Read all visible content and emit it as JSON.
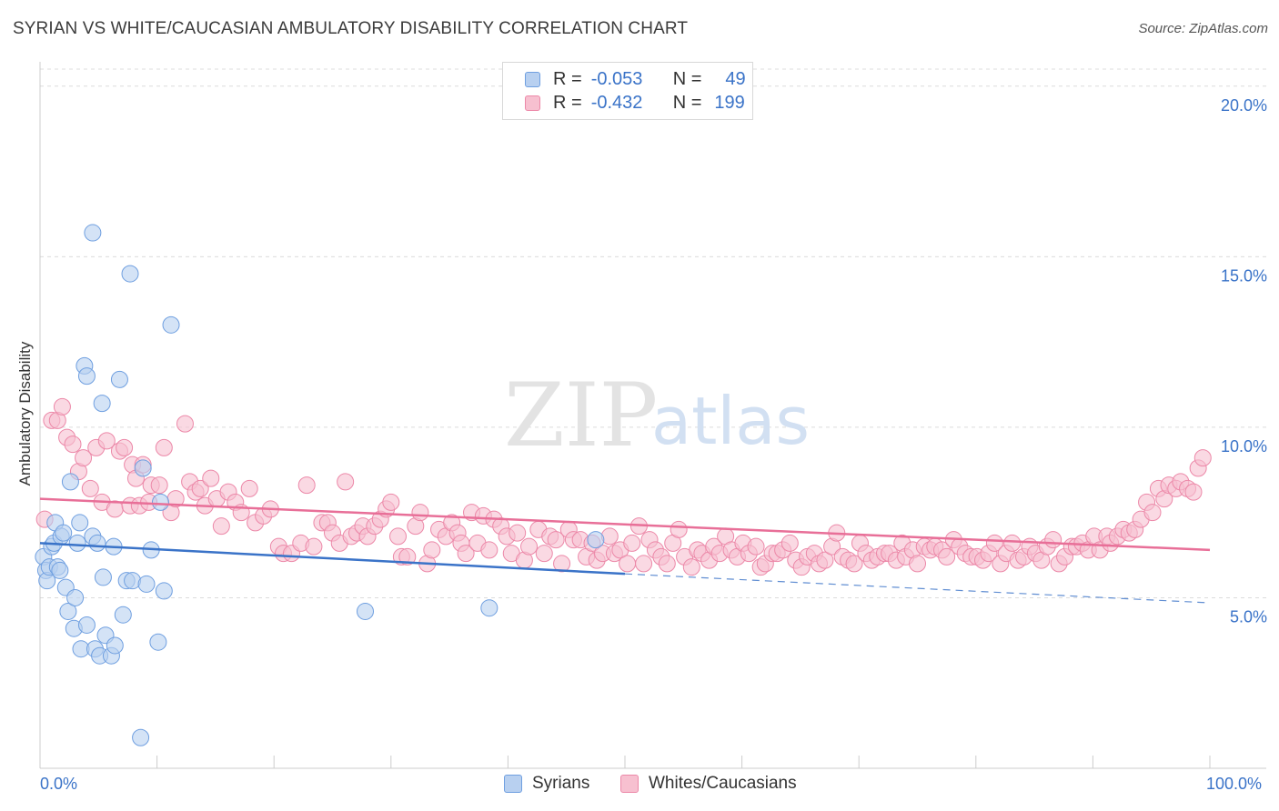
{
  "title": "SYRIAN VS WHITE/CAUCASIAN AMBULATORY DISABILITY CORRELATION CHART",
  "source": "Source: ZipAtlas.com",
  "watermark": {
    "zip": "ZIP",
    "atlas": "atlas"
  },
  "colors": {
    "syrian_fill": "#b8d0f0",
    "syrian_stroke": "#6f9fe0",
    "syrian_line": "#3a73c8",
    "white_fill": "#f7c0d0",
    "white_stroke": "#ec88a8",
    "white_line": "#e86f98",
    "tick_text": "#3a73c8"
  },
  "legend": {
    "rows": [
      {
        "r_label": "R =",
        "r_value": "-0.053",
        "n_label": "N =",
        "n_value": "49"
      },
      {
        "r_label": "R =",
        "r_value": "-0.432",
        "n_label": "N =",
        "n_value": "199"
      }
    ]
  },
  "bottom_legend": {
    "syrians": "Syrians",
    "whites": "Whites/Caucasians"
  },
  "chart_data": {
    "type": "scatter",
    "title": "SYRIAN VS WHITE/CAUCASIAN AMBULATORY DISABILITY CORRELATION CHART",
    "xlabel": "",
    "ylabel": "Ambulatory Disability",
    "xlim": [
      0,
      100
    ],
    "ylim": [
      0,
      20.5
    ],
    "x_tick_labels": {
      "min": "0.0%",
      "max": "100.0%"
    },
    "y_ticks": [
      {
        "value": 5,
        "label": "5.0%"
      },
      {
        "value": 10,
        "label": "10.0%"
      },
      {
        "value": 15,
        "label": "15.0%"
      },
      {
        "value": 20,
        "label": "20.0%"
      }
    ],
    "series": [
      {
        "name": "Syrians",
        "r": -0.053,
        "n": 49,
        "trend": {
          "x0": 0,
          "y0": 6.6,
          "x1": 50,
          "y1": 5.7,
          "dashed_to_x": 100,
          "dashed_to_y": 4.85
        },
        "points": [
          [
            0.3,
            6.2
          ],
          [
            0.5,
            5.8
          ],
          [
            0.6,
            5.5
          ],
          [
            0.8,
            5.9
          ],
          [
            1,
            6.5
          ],
          [
            1.2,
            6.6
          ],
          [
            1.3,
            7.2
          ],
          [
            1.5,
            5.9
          ],
          [
            1.7,
            5.8
          ],
          [
            1.8,
            6.8
          ],
          [
            2,
            6.9
          ],
          [
            2.2,
            5.3
          ],
          [
            2.4,
            4.6
          ],
          [
            2.6,
            8.4
          ],
          [
            2.9,
            4.1
          ],
          [
            3,
            5.0
          ],
          [
            3.2,
            6.6
          ],
          [
            3.4,
            7.2
          ],
          [
            3.5,
            3.5
          ],
          [
            3.8,
            11.8
          ],
          [
            4,
            11.5
          ],
          [
            4,
            4.2
          ],
          [
            4.5,
            15.7
          ],
          [
            4.5,
            6.8
          ],
          [
            4.7,
            3.5
          ],
          [
            4.9,
            6.6
          ],
          [
            5.1,
            3.3
          ],
          [
            5.3,
            10.7
          ],
          [
            5.4,
            5.6
          ],
          [
            5.6,
            3.9
          ],
          [
            6.1,
            3.3
          ],
          [
            6.3,
            6.5
          ],
          [
            6.4,
            3.6
          ],
          [
            6.8,
            11.4
          ],
          [
            7.1,
            4.5
          ],
          [
            7.4,
            5.5
          ],
          [
            7.7,
            14.5
          ],
          [
            7.9,
            5.5
          ],
          [
            8.6,
            0.9
          ],
          [
            8.8,
            8.8
          ],
          [
            9.1,
            5.4
          ],
          [
            9.5,
            6.4
          ],
          [
            10.1,
            3.7
          ],
          [
            10.3,
            7.8
          ],
          [
            10.6,
            5.2
          ],
          [
            11.2,
            13.0
          ],
          [
            27.8,
            4.6
          ],
          [
            38.4,
            4.7
          ],
          [
            47.5,
            6.7
          ]
        ]
      },
      {
        "name": "Whites/Caucasians",
        "r": -0.432,
        "n": 199,
        "trend": {
          "x0": 0,
          "y0": 7.9,
          "x1": 100,
          "y1": 6.4
        },
        "points": [
          [
            0.4,
            7.3
          ],
          [
            1,
            10.2
          ],
          [
            1.5,
            10.2
          ],
          [
            1.9,
            10.6
          ],
          [
            2.3,
            9.7
          ],
          [
            2.8,
            9.5
          ],
          [
            3.3,
            8.7
          ],
          [
            3.7,
            9.1
          ],
          [
            4.3,
            8.2
          ],
          [
            4.8,
            9.4
          ],
          [
            5.3,
            7.8
          ],
          [
            5.7,
            9.6
          ],
          [
            6.4,
            7.6
          ],
          [
            6.8,
            9.3
          ],
          [
            7.2,
            9.4
          ],
          [
            7.7,
            7.7
          ],
          [
            7.9,
            8.9
          ],
          [
            8.2,
            8.5
          ],
          [
            8.5,
            7.7
          ],
          [
            8.8,
            8.9
          ],
          [
            9.3,
            7.8
          ],
          [
            9.5,
            8.3
          ],
          [
            10.2,
            8.3
          ],
          [
            10.6,
            9.4
          ],
          [
            11.2,
            7.5
          ],
          [
            11.6,
            7.9
          ],
          [
            12.4,
            10.1
          ],
          [
            12.8,
            8.4
          ],
          [
            13.3,
            8.1
          ],
          [
            13.7,
            8.2
          ],
          [
            14.1,
            7.7
          ],
          [
            14.6,
            8.5
          ],
          [
            15.1,
            7.9
          ],
          [
            15.5,
            7.1
          ],
          [
            16.1,
            8.1
          ],
          [
            16.7,
            7.8
          ],
          [
            17.2,
            7.5
          ],
          [
            17.9,
            8.2
          ],
          [
            18.4,
            7.2
          ],
          [
            19.1,
            7.4
          ],
          [
            19.7,
            7.6
          ],
          [
            20.4,
            6.5
          ],
          [
            20.8,
            6.3
          ],
          [
            21.5,
            6.3
          ],
          [
            22.3,
            6.6
          ],
          [
            22.8,
            8.3
          ],
          [
            23.4,
            6.5
          ],
          [
            24.1,
            7.2
          ],
          [
            24.6,
            7.2
          ],
          [
            25,
            6.9
          ],
          [
            25.6,
            6.6
          ],
          [
            26.1,
            8.4
          ],
          [
            26.6,
            6.8
          ],
          [
            27.1,
            6.9
          ],
          [
            27.6,
            7.1
          ],
          [
            28,
            6.8
          ],
          [
            28.6,
            7.1
          ],
          [
            29.1,
            7.3
          ],
          [
            29.6,
            7.6
          ],
          [
            30,
            7.8
          ],
          [
            30.6,
            6.8
          ],
          [
            30.9,
            6.2
          ],
          [
            31.4,
            6.2
          ],
          [
            32.1,
            7.1
          ],
          [
            32.5,
            7.5
          ],
          [
            33.1,
            6.0
          ],
          [
            33.5,
            6.4
          ],
          [
            34.1,
            7.0
          ],
          [
            34.7,
            6.8
          ],
          [
            35.2,
            7.2
          ],
          [
            35.7,
            6.9
          ],
          [
            36,
            6.6
          ],
          [
            36.4,
            6.3
          ],
          [
            36.9,
            7.5
          ],
          [
            37.4,
            6.6
          ],
          [
            37.9,
            7.4
          ],
          [
            38.4,
            6.4
          ],
          [
            38.8,
            7.3
          ],
          [
            39.4,
            7.1
          ],
          [
            39.9,
            6.8
          ],
          [
            40.3,
            6.3
          ],
          [
            40.8,
            6.9
          ],
          [
            41.4,
            6.1
          ],
          [
            41.8,
            6.5
          ],
          [
            42.6,
            7.0
          ],
          [
            43.1,
            6.3
          ],
          [
            43.6,
            6.8
          ],
          [
            44.1,
            6.7
          ],
          [
            44.6,
            6.0
          ],
          [
            45.2,
            7.0
          ],
          [
            45.6,
            6.7
          ],
          [
            46.2,
            6.7
          ],
          [
            46.7,
            6.2
          ],
          [
            47.2,
            6.6
          ],
          [
            47.6,
            6.1
          ],
          [
            48.1,
            6.3
          ],
          [
            48.7,
            6.8
          ],
          [
            49.1,
            6.3
          ],
          [
            49.6,
            6.4
          ],
          [
            50.2,
            6.0
          ],
          [
            50.6,
            6.6
          ],
          [
            51.2,
            7.1
          ],
          [
            51.6,
            6.0
          ],
          [
            52.1,
            6.7
          ],
          [
            52.6,
            6.4
          ],
          [
            53.1,
            6.2
          ],
          [
            53.6,
            6.0
          ],
          [
            54.1,
            6.6
          ],
          [
            54.6,
            7.0
          ],
          [
            55.1,
            6.2
          ],
          [
            55.7,
            5.9
          ],
          [
            56.2,
            6.4
          ],
          [
            56.6,
            6.3
          ],
          [
            57.2,
            6.1
          ],
          [
            57.6,
            6.5
          ],
          [
            58.1,
            6.3
          ],
          [
            58.6,
            6.8
          ],
          [
            59.1,
            6.4
          ],
          [
            59.6,
            6.2
          ],
          [
            60.1,
            6.6
          ],
          [
            60.6,
            6.3
          ],
          [
            61.2,
            6.5
          ],
          [
            61.6,
            5.9
          ],
          [
            62,
            6.0
          ],
          [
            62.6,
            6.3
          ],
          [
            63,
            6.3
          ],
          [
            63.5,
            6.4
          ],
          [
            64.1,
            6.6
          ],
          [
            64.6,
            6.1
          ],
          [
            65.1,
            5.9
          ],
          [
            65.6,
            6.2
          ],
          [
            66.2,
            6.3
          ],
          [
            66.6,
            6.0
          ],
          [
            67.1,
            6.1
          ],
          [
            67.7,
            6.5
          ],
          [
            68.1,
            6.9
          ],
          [
            68.6,
            6.2
          ],
          [
            69.1,
            6.1
          ],
          [
            69.6,
            6.0
          ],
          [
            70.1,
            6.6
          ],
          [
            70.6,
            6.3
          ],
          [
            71.1,
            6.1
          ],
          [
            71.6,
            6.2
          ],
          [
            72.2,
            6.3
          ],
          [
            72.6,
            6.3
          ],
          [
            73.2,
            6.1
          ],
          [
            73.7,
            6.6
          ],
          [
            74,
            6.2
          ],
          [
            74.6,
            6.4
          ],
          [
            75,
            6.0
          ],
          [
            75.6,
            6.5
          ],
          [
            76.1,
            6.4
          ],
          [
            76.5,
            6.5
          ],
          [
            77.1,
            6.4
          ],
          [
            77.5,
            6.2
          ],
          [
            78.1,
            6.7
          ],
          [
            78.6,
            6.5
          ],
          [
            79.1,
            6.3
          ],
          [
            79.6,
            6.2
          ],
          [
            80.1,
            6.2
          ],
          [
            80.6,
            6.1
          ],
          [
            81.1,
            6.3
          ],
          [
            81.6,
            6.6
          ],
          [
            82.1,
            6.0
          ],
          [
            82.6,
            6.3
          ],
          [
            83.1,
            6.6
          ],
          [
            83.6,
            6.1
          ],
          [
            84.1,
            6.2
          ],
          [
            84.6,
            6.5
          ],
          [
            85.1,
            6.3
          ],
          [
            85.6,
            6.1
          ],
          [
            86.1,
            6.5
          ],
          [
            86.6,
            6.7
          ],
          [
            87.1,
            6.0
          ],
          [
            87.6,
            6.2
          ],
          [
            88.2,
            6.5
          ],
          [
            88.6,
            6.5
          ],
          [
            89.1,
            6.6
          ],
          [
            89.6,
            6.4
          ],
          [
            90.1,
            6.8
          ],
          [
            90.6,
            6.4
          ],
          [
            91.2,
            6.8
          ],
          [
            91.5,
            6.6
          ],
          [
            92.1,
            6.8
          ],
          [
            92.6,
            7.0
          ],
          [
            93.1,
            6.9
          ],
          [
            93.6,
            7.0
          ],
          [
            94.1,
            7.3
          ],
          [
            94.6,
            7.8
          ],
          [
            95.1,
            7.5
          ],
          [
            95.6,
            8.2
          ],
          [
            96.1,
            7.9
          ],
          [
            96.5,
            8.3
          ],
          [
            97.1,
            8.2
          ],
          [
            97.5,
            8.4
          ],
          [
            98.1,
            8.2
          ],
          [
            98.6,
            8.1
          ],
          [
            99,
            8.8
          ],
          [
            99.4,
            9.1
          ]
        ]
      }
    ]
  }
}
